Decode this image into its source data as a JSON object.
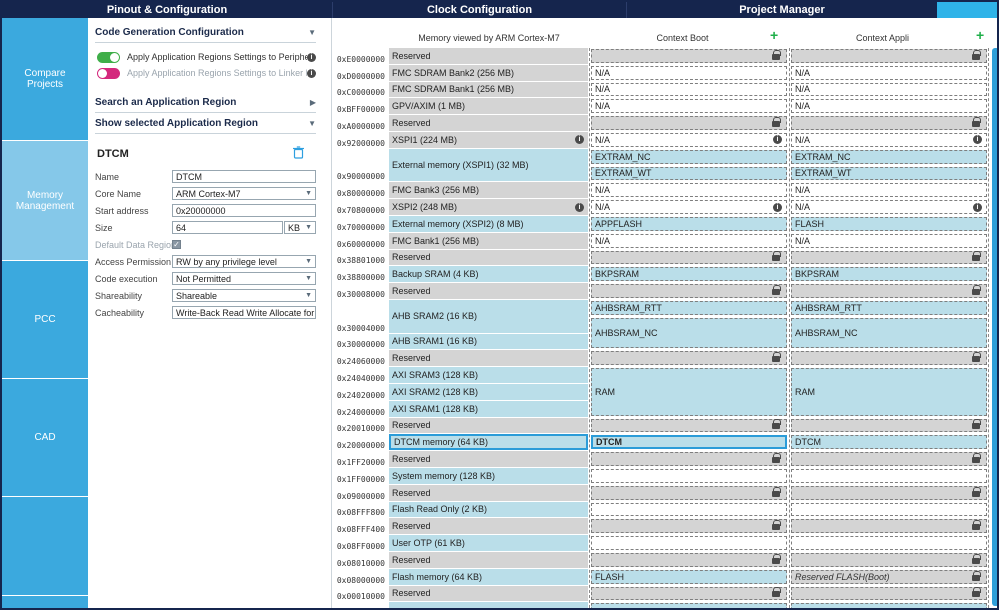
{
  "titlebar": {
    "tabs": [
      {
        "id": "pinout-configuration",
        "label": "Pinout & Configuration"
      },
      {
        "id": "clock-configuration",
        "label": "Clock Configuration"
      },
      {
        "id": "project-manager",
        "label": "Project Manager"
      }
    ]
  },
  "sidebar": {
    "items": [
      {
        "id": "compare-projects",
        "label": "Compare Projects",
        "selected": false
      },
      {
        "id": "memory-management",
        "label": "Memory Management",
        "selected": true
      },
      {
        "id": "pcc",
        "label": "PCC",
        "selected": false
      },
      {
        "id": "cad",
        "label": "CAD",
        "selected": false
      },
      {
        "id": "extra-1",
        "label": "",
        "selected": false
      },
      {
        "id": "extra-2",
        "label": "",
        "selected": false
      }
    ]
  },
  "config_panel": {
    "sections": {
      "code_generation": {
        "title": "Code Generation Configuration",
        "chevron": "v"
      },
      "search_region": {
        "title": "Search an Application Region",
        "chevron": ">"
      },
      "show_selected": {
        "title": "Show selected Application Region",
        "chevron": "v"
      }
    },
    "toggles": [
      {
        "label": "Apply Application Regions Settings to Peripherals: ON",
        "state": "on",
        "color": "#3fae49"
      },
      {
        "label": "Apply Application Regions Settings to Linker Files: OFF",
        "state": "off",
        "color": "#d4287d"
      }
    ],
    "region_form": {
      "title": "DTCM",
      "fields": [
        {
          "label": "Name",
          "type": "input",
          "value": "DTCM"
        },
        {
          "label": "Core Name",
          "type": "select",
          "value": "ARM Cortex-M7"
        },
        {
          "label": "Start address",
          "type": "input",
          "value": "0x20000000"
        },
        {
          "label": "Size",
          "type": "input-unit",
          "value": "64",
          "unit": "KB"
        },
        {
          "label": "Default Data Region",
          "type": "checkbox",
          "checked": true,
          "check_glyph": "✓"
        },
        {
          "label": "Access Permission",
          "type": "select",
          "value": "RW by any privilege level"
        },
        {
          "label": "Code execution",
          "type": "select",
          "value": "Not Permitted"
        },
        {
          "label": "Shareability",
          "type": "select",
          "value": "Shareable"
        },
        {
          "label": "Cacheability",
          "type": "select",
          "value": "Write-Back Read Write Allocate for RW ..."
        }
      ]
    }
  },
  "memory_table": {
    "columns": {
      "memory": "Memory viewed by ARM Cortex-M7",
      "boot": "Context Boot",
      "appli": "Context Appli"
    },
    "add_context_label": "+",
    "memory_rows": [
      {
        "addr": "0xE0000000",
        "label": "Reserved",
        "color": "g",
        "h": 1
      },
      {
        "addr": "0xD0000000",
        "label": "FMC SDRAM Bank2 (256 MB)",
        "color": "g",
        "h": 1
      },
      {
        "addr": "0xC0000000",
        "label": "FMC SDRAM Bank1 (256 MB)",
        "color": "g",
        "h": 1
      },
      {
        "addr": "0xBFF00000",
        "label": "GPV/AXIM (1 MB)",
        "color": "g",
        "h": 1
      },
      {
        "addr": "0xA0000000",
        "label": "Reserved",
        "color": "g",
        "h": 1
      },
      {
        "addr": "0x92000000",
        "label": "XSPI1 (224 MB)",
        "color": "g",
        "h": 1,
        "info": true
      },
      {
        "addr": "0x90000000",
        "label": "External memory (XSPI1) (32 MB)",
        "color": "c",
        "h": 2
      },
      {
        "addr": "0x80000000",
        "label": "FMC Bank3 (256 MB)",
        "color": "g",
        "h": 1
      },
      {
        "addr": "0x70800000",
        "label": "XSPI2 (248 MB)",
        "color": "g",
        "h": 1,
        "info": true
      },
      {
        "addr": "0x70000000",
        "label": "External memory (XSPI2) (8 MB)",
        "color": "c",
        "h": 1
      },
      {
        "addr": "0x60000000",
        "label": "FMC Bank1 (256 MB)",
        "color": "g",
        "h": 1
      },
      {
        "addr": "0x38801000",
        "label": "Reserved",
        "color": "g",
        "h": 1
      },
      {
        "addr": "0x38800000",
        "label": "Backup SRAM (4 KB)",
        "color": "c",
        "h": 1
      },
      {
        "addr": "0x30008000",
        "label": "Reserved",
        "color": "g",
        "h": 1
      },
      {
        "addr": "0x30004000",
        "label": "AHB SRAM2 (16 KB)",
        "color": "c",
        "h": 2
      },
      {
        "addr": "0x30000000",
        "label": "AHB SRAM1 (16 KB)",
        "color": "c",
        "h": 1
      },
      {
        "addr": "0x24060000",
        "label": "Reserved",
        "color": "g",
        "h": 1
      },
      {
        "addr": "0x24040000",
        "label": "AXI SRAM3 (128 KB)",
        "color": "c",
        "h": 1
      },
      {
        "addr": "0x24020000",
        "label": "AXI SRAM2 (128 KB)",
        "color": "c",
        "h": 1
      },
      {
        "addr": "0x24000000",
        "label": "AXI SRAM1 (128 KB)",
        "color": "c",
        "h": 1
      },
      {
        "addr": "0x20010000",
        "label": "Reserved",
        "color": "g",
        "h": 1
      },
      {
        "addr": "0x20000000",
        "label": "DTCM memory (64 KB)",
        "color": "c",
        "h": 1,
        "selected": true
      },
      {
        "addr": "0x1FF20000",
        "label": "Reserved",
        "color": "g",
        "h": 1
      },
      {
        "addr": "0x1FF00000",
        "label": "System memory (128 KB)",
        "color": "c",
        "h": 1
      },
      {
        "addr": "0x09000000",
        "label": "Reserved",
        "color": "g",
        "h": 1
      },
      {
        "addr": "0x08FFF800",
        "label": "Flash Read Only (2 KB)",
        "color": "c",
        "h": 1
      },
      {
        "addr": "0x08FFF400",
        "label": "Reserved",
        "color": "g",
        "h": 1
      },
      {
        "addr": "0x08FF0000",
        "label": "User OTP (61 KB)",
        "color": "c",
        "h": 1
      },
      {
        "addr": "0x08010000",
        "label": "Reserved",
        "color": "g",
        "h": 1
      },
      {
        "addr": "0x08000000",
        "label": "Flash memory (64 KB)",
        "color": "c",
        "h": 1
      },
      {
        "addr": "0x00010000",
        "label": "Reserved",
        "color": "g",
        "h": 1
      },
      {
        "addr": "",
        "label": "",
        "color": "c",
        "h": 0.55
      }
    ],
    "boot_cells": [
      {
        "label": "",
        "color": "g",
        "h": 1,
        "lock": true
      },
      {
        "label": "N/A",
        "color": "w",
        "h": 1
      },
      {
        "label": "N/A",
        "color": "w",
        "h": 1
      },
      {
        "label": "N/A",
        "color": "w",
        "h": 1
      },
      {
        "label": "",
        "color": "g",
        "h": 1,
        "lock": true
      },
      {
        "label": "N/A",
        "color": "w",
        "h": 1,
        "info": true
      },
      {
        "label": "EXTRAM_NC",
        "color": "c",
        "h": 1
      },
      {
        "label": "EXTRAM_WT",
        "color": "c",
        "h": 1
      },
      {
        "label": "N/A",
        "color": "w",
        "h": 1
      },
      {
        "label": "N/A",
        "color": "w",
        "h": 1,
        "info": true
      },
      {
        "label": "APPFLASH",
        "color": "c",
        "h": 1
      },
      {
        "label": "N/A",
        "color": "w",
        "h": 1
      },
      {
        "label": "",
        "color": "g",
        "h": 1,
        "lock": true
      },
      {
        "label": "BKPSRAM",
        "color": "c",
        "h": 1
      },
      {
        "label": "",
        "color": "g",
        "h": 1,
        "lock": true
      },
      {
        "label": "AHBSRAM_RTT",
        "color": "c",
        "h": 1
      },
      {
        "label": "AHBSRAM_NC",
        "color": "c",
        "h": 2
      },
      {
        "label": "",
        "color": "g",
        "h": 1,
        "lock": true
      },
      {
        "label": "RAM",
        "color": "c",
        "h": 3
      },
      {
        "label": "",
        "color": "g",
        "h": 1,
        "lock": true
      },
      {
        "label": "DTCM",
        "color": "c",
        "h": 1,
        "selected": true
      },
      {
        "label": "",
        "color": "g",
        "h": 1,
        "lock": true
      },
      {
        "label": "",
        "color": "w",
        "h": 1
      },
      {
        "label": "",
        "color": "g",
        "h": 1,
        "lock": true
      },
      {
        "label": "",
        "color": "w",
        "h": 1
      },
      {
        "label": "",
        "color": "g",
        "h": 1,
        "lock": true
      },
      {
        "label": "",
        "color": "w",
        "h": 1
      },
      {
        "label": "",
        "color": "g",
        "h": 1,
        "lock": true
      },
      {
        "label": "FLASH",
        "color": "c",
        "h": 1
      },
      {
        "label": "",
        "color": "g",
        "h": 1,
        "lock": true
      },
      {
        "label": "",
        "color": "c",
        "h": 0.55
      }
    ],
    "appli_cells": [
      {
        "label": "",
        "color": "g",
        "h": 1,
        "lock": true
      },
      {
        "label": "N/A",
        "color": "w",
        "h": 1
      },
      {
        "label": "N/A",
        "color": "w",
        "h": 1
      },
      {
        "label": "N/A",
        "color": "w",
        "h": 1
      },
      {
        "label": "",
        "color": "g",
        "h": 1,
        "lock": true
      },
      {
        "label": "N/A",
        "color": "w",
        "h": 1,
        "info": true
      },
      {
        "label": "EXTRAM_NC",
        "color": "c",
        "h": 1
      },
      {
        "label": "EXTRAM_WT",
        "color": "c",
        "h": 1
      },
      {
        "label": "N/A",
        "color": "w",
        "h": 1
      },
      {
        "label": "N/A",
        "color": "w",
        "h": 1,
        "info": true
      },
      {
        "label": "FLASH",
        "color": "c",
        "h": 1
      },
      {
        "label": "N/A",
        "color": "w",
        "h": 1
      },
      {
        "label": "",
        "color": "g",
        "h": 1,
        "lock": true
      },
      {
        "label": "BKPSRAM",
        "color": "c",
        "h": 1
      },
      {
        "label": "",
        "color": "g",
        "h": 1,
        "lock": true
      },
      {
        "label": "AHBSRAM_RTT",
        "color": "c",
        "h": 1
      },
      {
        "label": "AHBSRAM_NC",
        "color": "c",
        "h": 2
      },
      {
        "label": "",
        "color": "g",
        "h": 1,
        "lock": true
      },
      {
        "label": "RAM",
        "color": "c",
        "h": 3
      },
      {
        "label": "",
        "color": "g",
        "h": 1,
        "lock": true
      },
      {
        "label": "DTCM",
        "color": "c",
        "h": 1
      },
      {
        "label": "",
        "color": "g",
        "h": 1,
        "lock": true
      },
      {
        "label": "",
        "color": "w",
        "h": 1
      },
      {
        "label": "",
        "color": "g",
        "h": 1,
        "lock": true
      },
      {
        "label": "",
        "color": "w",
        "h": 1
      },
      {
        "label": "",
        "color": "g",
        "h": 1,
        "lock": true
      },
      {
        "label": "",
        "color": "w",
        "h": 1
      },
      {
        "label": "",
        "color": "g",
        "h": 1,
        "lock": true
      },
      {
        "label": "Reserved FLASH(Boot)",
        "color": "g",
        "h": 1,
        "lock": true,
        "italic": true
      },
      {
        "label": "",
        "color": "g",
        "h": 1,
        "lock": true
      },
      {
        "label": "",
        "color": "c",
        "h": 0.55
      }
    ]
  },
  "colors": {
    "topbar": "#15254d",
    "accent_cyan": "#2fb3e8",
    "sidebar_blue": "#3ba9de",
    "sidebar_selected": "#85c8e9",
    "cell_gray": "#d4d4d4",
    "cell_cyan": "#badee9",
    "selection_blue": "#2b9cd8",
    "toggle_on_green": "#3fae49",
    "toggle_off_pink": "#d4287d",
    "plus_green": "#1faf4a",
    "scrollbar_blue": "#2e9fd9"
  }
}
